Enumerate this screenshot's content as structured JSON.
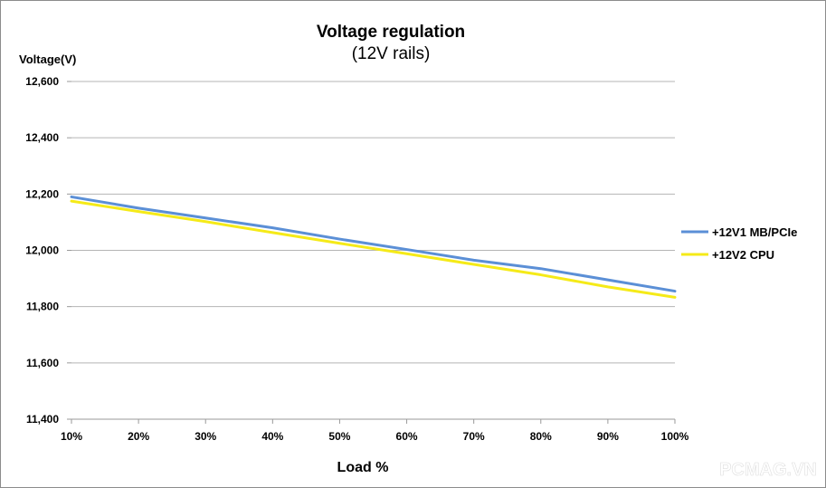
{
  "chart_data": {
    "type": "line",
    "title": "Voltage regulation",
    "subtitle": "(12V rails)",
    "ylabel": "Voltage(V)",
    "xlabel": "Load %",
    "categories": [
      "10%",
      "20%",
      "30%",
      "40%",
      "50%",
      "60%",
      "70%",
      "80%",
      "90%",
      "100%"
    ],
    "y_ticks": [
      "11,400",
      "11,600",
      "11,800",
      "12,000",
      "12,200",
      "12,400",
      "12,600"
    ],
    "ylim": [
      11400,
      12600
    ],
    "grid": true,
    "legend_position": "right",
    "series": [
      {
        "name": "+12V1 MB/PCIe",
        "color": "#5b8fd6",
        "values": [
          12190,
          12150,
          12115,
          12080,
          12040,
          12003,
          11965,
          11935,
          11895,
          11855
        ]
      },
      {
        "name": "+12V2 CPU",
        "color": "#f5ea18",
        "values": [
          12175,
          12138,
          12102,
          12063,
          12025,
          11988,
          11950,
          11913,
          11870,
          11833
        ]
      }
    ]
  },
  "watermark": "PCMAG.VN"
}
